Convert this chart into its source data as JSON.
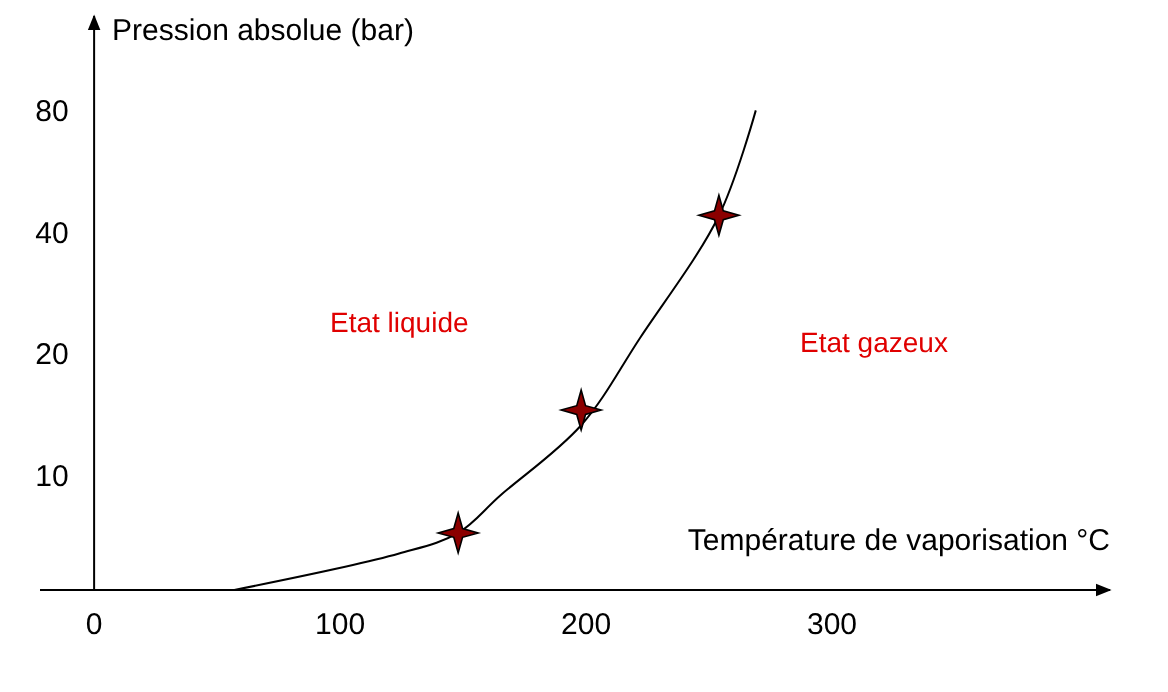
{
  "chart_data": {
    "type": "line",
    "xlabel": "Température de vaporisation °C",
    "ylabel": "Pression absolue (bar)",
    "xlim": [
      -22,
      413
    ],
    "ylim": [
      5.2,
      137
    ],
    "xticks": [
      0,
      100,
      200,
      300
    ],
    "yticks": [
      10,
      20,
      40,
      80
    ],
    "log": "y",
    "grid": false,
    "series": [
      {
        "color": "#000000",
        "marker": "none",
        "x": [
          57,
          124,
          148,
          165,
          198,
          222,
          254,
          269
        ],
        "values": [
          5.2,
          6.4,
          7.2,
          8.9,
          13.3,
          21.9,
          43.9,
          80
        ]
      },
      {
        "type": "scatter",
        "color": "#8b0000",
        "marker": "star",
        "x": [
          148,
          198,
          254
        ],
        "values": [
          7.2,
          14.5,
          44
        ]
      }
    ],
    "annotations": [
      "Etat liquide",
      "Etat gazeux"
    ]
  }
}
